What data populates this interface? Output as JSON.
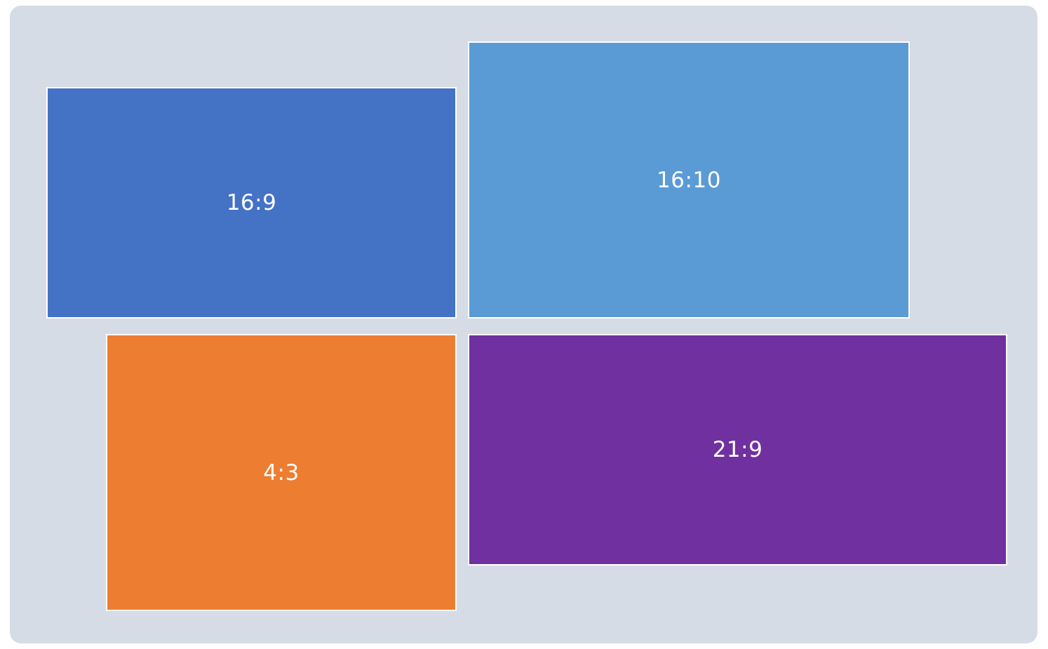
{
  "colors": {
    "background_panel": "#d6dce5",
    "border": "#ffffff",
    "text": "#ffffff"
  },
  "blocks": [
    {
      "id": "block-16-9",
      "label": "16:9",
      "color": "#4472c4"
    },
    {
      "id": "block-16-10",
      "label": "16:10",
      "color": "#5b9bd5"
    },
    {
      "id": "block-4-3",
      "label": "4:3",
      "color": "#ed7d31"
    },
    {
      "id": "block-21-9",
      "label": "21:9",
      "color": "#7030a0"
    }
  ]
}
